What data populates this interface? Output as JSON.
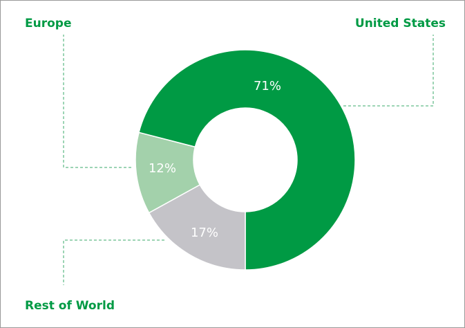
{
  "chart_data": {
    "type": "pie",
    "categories": [
      "United States",
      "Europe",
      "Rest of World"
    ],
    "values": [
      71,
      12,
      17
    ],
    "value_labels": [
      "71%",
      "12%",
      "17%"
    ],
    "colors": [
      "#009a44",
      "#a3d1ab",
      "#c4c3c8"
    ]
  }
}
